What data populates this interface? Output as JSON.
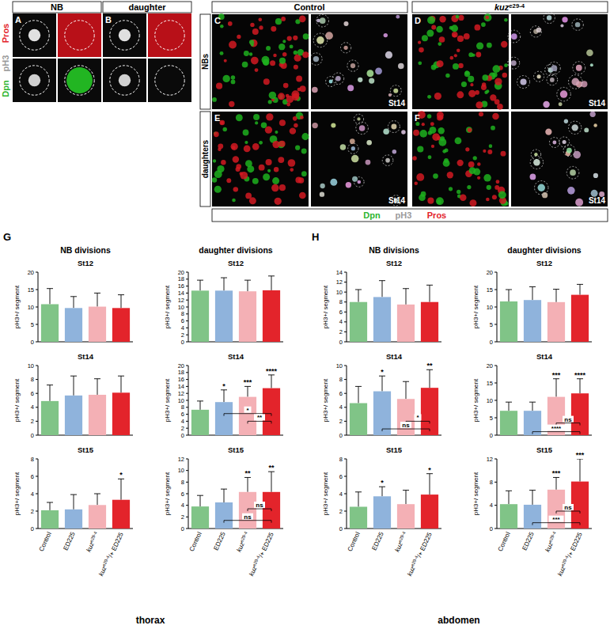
{
  "figure": {
    "panel_letters": [
      "A",
      "B",
      "C",
      "D",
      "E",
      "F",
      "G",
      "H"
    ],
    "small_headers": [
      "NB",
      "daughter"
    ],
    "channel_labels": [
      {
        "text": "Pros",
        "color": "#e3242b"
      },
      {
        "text": "pH3",
        "color": "#9a9a9a"
      },
      {
        "text": "Dpn",
        "color": "#2db52d"
      }
    ],
    "big_headers": [
      "Control",
      "kuze29-4"
    ],
    "row_labels": [
      "NBs",
      "daughters"
    ],
    "stage_label": "St14",
    "legend_labels": [
      {
        "text": "Dpn",
        "color": "#2db52d"
      },
      {
        "text": "pH3",
        "color": "#9a9a9a"
      },
      {
        "text": "Pros",
        "color": "#e3242b"
      }
    ],
    "group_heads": [
      "NB divisions",
      "daughter divisions"
    ],
    "regions": [
      "thorax",
      "abdomen"
    ]
  },
  "chart_data": [
    {
      "type": "bar",
      "title": "St12",
      "y_label": "pH3+/ segment",
      "categories": [
        "Control",
        "ED225",
        "kuze29-4",
        "kuze29-4/+ ED225"
      ],
      "colors": [
        "#80c487",
        "#8fb3dc",
        "#f4b0b5",
        "#e3242b"
      ],
      "values": [
        10.8,
        9.7,
        10.1,
        9.7
      ],
      "errors": [
        4.5,
        3.3,
        3.9,
        3.8
      ],
      "sig": [
        null,
        null,
        null,
        null
      ],
      "brackets": [],
      "ylim": [
        0,
        20
      ],
      "yticks": [
        0,
        5,
        10,
        15,
        20
      ],
      "tick_labels": "y"
    },
    {
      "type": "bar",
      "title": "St12",
      "y_label": "pH3+/ segment",
      "categories": [
        "Control",
        "ED225",
        "kuze29-4",
        "kuze29-4/+ ED225"
      ],
      "colors": [
        "#80c487",
        "#8fb3dc",
        "#f4b0b5",
        "#e3242b"
      ],
      "values": [
        14.7,
        14.7,
        14.5,
        14.8
      ],
      "errors": [
        3,
        3.7,
        3.2,
        4.1
      ],
      "sig": [
        null,
        null,
        null,
        null
      ],
      "brackets": [],
      "ylim": [
        0,
        20
      ],
      "yticks": [
        0,
        2,
        4,
        6,
        8,
        10,
        12,
        14,
        16,
        18,
        20
      ],
      "tick_labels": "y"
    },
    {
      "type": "bar",
      "title": "St14",
      "y_label": "pH3+/ segment",
      "categories": [
        "Control",
        "ED225",
        "kuze29-4",
        "kuze29-4/+ ED225"
      ],
      "colors": [
        "#80c487",
        "#8fb3dc",
        "#f4b0b5",
        "#e3242b"
      ],
      "values": [
        4.9,
        5.7,
        5.8,
        6.1
      ],
      "errors": [
        2.3,
        2.8,
        2.3,
        2.4
      ],
      "sig": [
        null,
        null,
        null,
        null
      ],
      "brackets": [],
      "ylim": [
        0,
        10
      ],
      "yticks": [
        0,
        2,
        4,
        6,
        8,
        10
      ],
      "tick_labels": "y"
    },
    {
      "type": "bar",
      "title": "St14",
      "y_label": "pH3+/ segment",
      "categories": [
        "Control",
        "ED225",
        "kuze29-4",
        "kuze29-4/+ ED225"
      ],
      "colors": [
        "#80c487",
        "#8fb3dc",
        "#f4b0b5",
        "#e3242b"
      ],
      "values": [
        7.3,
        9.5,
        11,
        13.5
      ],
      "errors": [
        2.5,
        3.5,
        3,
        3.8
      ],
      "sig": [
        null,
        "*",
        "***",
        "****"
      ],
      "brackets": [
        {
          "from": "ED225",
          "to": "kuze29-4/+ ED225",
          "y": 6.2,
          "label": "*"
        },
        {
          "from": "kuze29-4",
          "to": "kuze29-4/+ ED225",
          "y": 4,
          "label": "**"
        }
      ],
      "ylim": [
        0,
        20
      ],
      "yticks": [
        0,
        2,
        4,
        6,
        8,
        10,
        12,
        14,
        16,
        18,
        20
      ],
      "tick_labels": "y"
    },
    {
      "type": "bar",
      "title": "St15",
      "y_label": "pH3+/ segment",
      "categories": [
        "Control",
        "ED225",
        "kuze29-4",
        "kuze29-4/+ ED225"
      ],
      "colors": [
        "#80c487",
        "#8fb3dc",
        "#f4b0b5",
        "#e3242b"
      ],
      "values": [
        2.1,
        2.2,
        2.7,
        3.3
      ],
      "errors": [
        0.9,
        1.7,
        1.3,
        2.4
      ],
      "sig": [
        null,
        null,
        null,
        "*"
      ],
      "brackets": [],
      "ylim": [
        0,
        8
      ],
      "yticks": [
        0,
        2,
        4,
        6,
        8
      ]
    },
    {
      "type": "bar",
      "title": "St15",
      "y_label": "pH3+/ segment",
      "categories": [
        "Control",
        "ED225",
        "kuze29-4",
        "kuze29-4/+ ED225"
      ],
      "colors": [
        "#80c487",
        "#8fb3dc",
        "#f4b0b5",
        "#e3242b"
      ],
      "values": [
        3.8,
        4.5,
        6.3,
        6.3
      ],
      "errors": [
        1.9,
        2.3,
        2.5,
        3.5
      ],
      "sig": [
        null,
        null,
        "**",
        "**"
      ],
      "brackets": [
        {
          "from": "kuze29-4",
          "to": "kuze29-4/+ ED225",
          "y": 3.4,
          "label": "ns"
        },
        {
          "from": "ED225",
          "to": "kuze29-4/+ ED225",
          "y": 1.4,
          "label": "ns"
        }
      ],
      "ylim": [
        0,
        12
      ],
      "yticks": [
        0,
        2,
        4,
        6,
        8,
        10,
        12
      ]
    },
    {
      "type": "bar",
      "title": "St12",
      "y_label": "pH3+/ segment",
      "categories": [
        "Control",
        "ED225",
        "kuze29-4",
        "kuze29-4/+ ED225"
      ],
      "colors": [
        "#80c487",
        "#8fb3dc",
        "#f4b0b5",
        "#e3242b"
      ],
      "values": [
        8,
        9,
        7.5,
        8
      ],
      "errors": [
        2.5,
        3.3,
        3.2,
        3.4
      ],
      "sig": [
        null,
        null,
        null,
        null
      ],
      "brackets": [],
      "ylim": [
        0,
        14
      ],
      "yticks": [
        0,
        2,
        4,
        6,
        8,
        10,
        12,
        14
      ],
      "tick_labels": "y"
    },
    {
      "type": "bar",
      "title": "St12",
      "y_label": "pH3+/ segment",
      "categories": [
        "Control",
        "ED225",
        "kuze29-4",
        "kuze29-4/+ ED225"
      ],
      "colors": [
        "#80c487",
        "#8fb3dc",
        "#f4b0b5",
        "#e3242b"
      ],
      "values": [
        11.6,
        12,
        11.4,
        13.5
      ],
      "errors": [
        3.4,
        3.8,
        3.7,
        3
      ],
      "sig": [
        null,
        null,
        null,
        null
      ],
      "brackets": [],
      "ylim": [
        0,
        20
      ],
      "yticks": [
        0,
        5,
        10,
        15,
        20
      ],
      "tick_labels": "y"
    },
    {
      "type": "bar",
      "title": "St14",
      "y_label": "pH3+/ segment",
      "categories": [
        "Control",
        "ED225",
        "kuze29-4",
        "kuze29-4/+ ED225"
      ],
      "colors": [
        "#80c487",
        "#8fb3dc",
        "#f4b0b5",
        "#e3242b"
      ],
      "values": [
        4.6,
        6.3,
        5.2,
        6.8
      ],
      "errors": [
        2.4,
        2.2,
        2.5,
        2.6
      ],
      "sig": [
        null,
        "*",
        null,
        "**"
      ],
      "brackets": [
        {
          "from": "kuze29-4",
          "to": "kuze29-4/+ ED225",
          "y": 2,
          "label": "*"
        },
        {
          "from": "ED225",
          "to": "kuze29-4/+ ED225",
          "y": 0.9,
          "label": "ns"
        }
      ],
      "ylim": [
        0,
        10
      ],
      "yticks": [
        0,
        2,
        4,
        6,
        8,
        10
      ],
      "tick_labels": "y"
    },
    {
      "type": "bar",
      "title": "St14",
      "y_label": "pH3+/ segment",
      "categories": [
        "Control",
        "ED225",
        "kuze29-4",
        "kuze29-4/+ ED225"
      ],
      "colors": [
        "#80c487",
        "#8fb3dc",
        "#f4b0b5",
        "#e3242b"
      ],
      "values": [
        7,
        7,
        11,
        12
      ],
      "errors": [
        2.5,
        2.5,
        5.2,
        4.2
      ],
      "sig": [
        null,
        null,
        "***",
        "****"
      ],
      "brackets": [
        {
          "from": "kuze29-4",
          "to": "kuze29-4/+ ED225",
          "y": 3.5,
          "label": "ns"
        },
        {
          "from": "ED225",
          "to": "kuze29-4/+ ED225",
          "y": 1,
          "label": "****"
        }
      ],
      "ylim": [
        0,
        20
      ],
      "yticks": [
        0,
        5,
        10,
        15,
        20
      ],
      "tick_labels": "y"
    },
    {
      "type": "bar",
      "title": "St15",
      "y_label": "pH3+/ segment",
      "categories": [
        "Control",
        "ED225",
        "kuze29-4",
        "kuze29-4/+ ED225"
      ],
      "colors": [
        "#80c487",
        "#8fb3dc",
        "#f4b0b5",
        "#e3242b"
      ],
      "values": [
        2.5,
        3.7,
        2.8,
        3.9
      ],
      "errors": [
        1.7,
        1.1,
        1.6,
        2.4
      ],
      "sig": [
        null,
        "*",
        null,
        "*"
      ],
      "brackets": [],
      "ylim": [
        0,
        8
      ],
      "yticks": [
        0,
        2,
        4,
        6,
        8
      ]
    },
    {
      "type": "bar",
      "title": "St15",
      "y_label": "pH3+/ segment",
      "categories": [
        "Control",
        "ED225",
        "kuze29-4",
        "kuze29-4/+ ED225"
      ],
      "colors": [
        "#80c487",
        "#8fb3dc",
        "#f4b0b5",
        "#e3242b"
      ],
      "values": [
        4.2,
        4.1,
        6.7,
        8.1
      ],
      "errors": [
        2.3,
        2.5,
        2.1,
        3.9
      ],
      "sig": [
        null,
        null,
        "***",
        "***"
      ],
      "brackets": [
        {
          "from": "kuze29-4",
          "to": "kuze29-4/+ ED225",
          "y": 3,
          "label": "ns"
        },
        {
          "from": "ED225",
          "to": "kuze29-4/+ ED225",
          "y": 1,
          "label": "***"
        }
      ],
      "ylim": [
        0,
        12
      ],
      "yticks": [
        0,
        4,
        8,
        12
      ]
    }
  ]
}
